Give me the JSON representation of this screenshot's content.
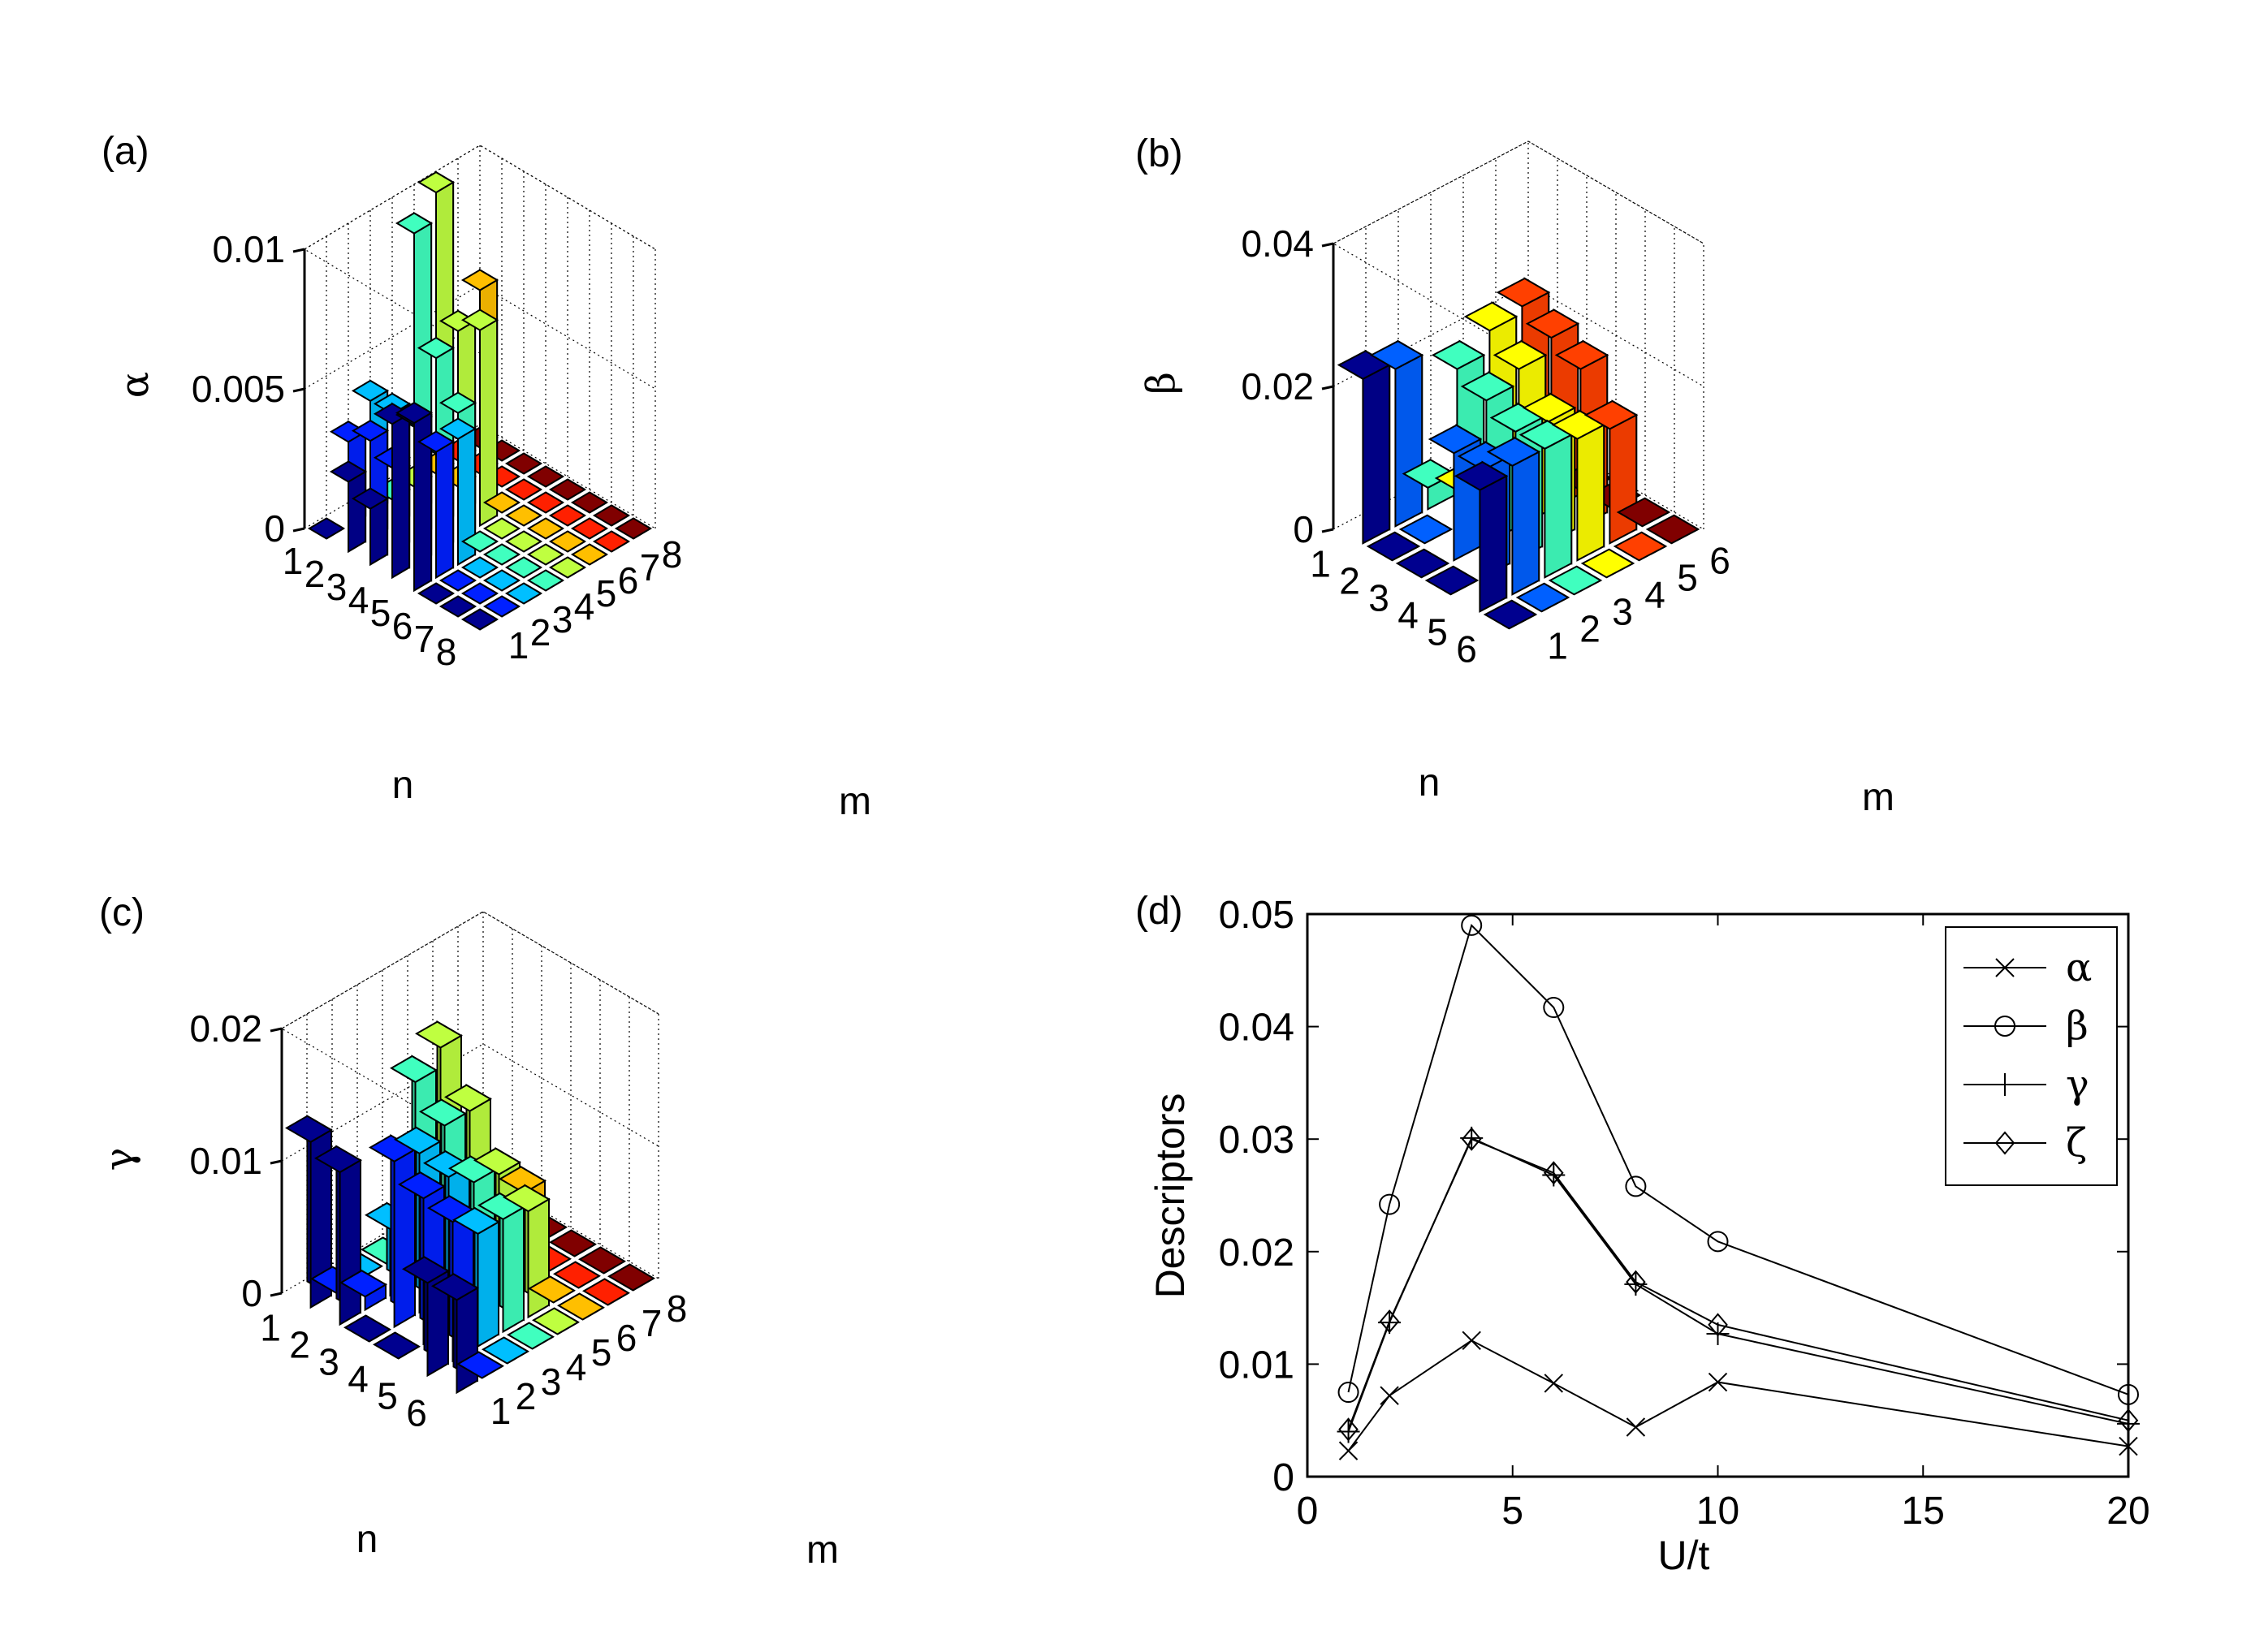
{
  "chart_data": [
    {
      "type": "bar3d",
      "panel_label": "(a)",
      "zlabel": "α",
      "xlabel": "n",
      "ylabel": "m",
      "zlim": [
        0,
        0.01
      ],
      "z_ticks": [
        "0",
        "0.005",
        "0.01"
      ],
      "n_ticks": [
        "1",
        "2",
        "3",
        "4",
        "5",
        "6",
        "7",
        "8"
      ],
      "m_ticks": [
        "1",
        "2",
        "3",
        "4",
        "5",
        "6",
        "7",
        "8"
      ],
      "colormap": [
        "#00008F",
        "#0020FF",
        "#00BFFF",
        "#40FFBF",
        "#BFFF40",
        "#FFBF00",
        "#FF2000",
        "#800000"
      ],
      "values": [
        [
          0.0,
          0.003,
          0.004,
          0.0,
          0.0,
          0.0,
          0.0,
          0.0
        ],
        [
          0.0025,
          0.0035,
          0.004,
          0.01,
          0.011,
          0.0,
          0.0,
          0.0
        ],
        [
          0.002,
          0.003,
          0.004,
          0.006,
          0.0065,
          0.0075,
          0.0,
          0.0
        ],
        [
          0.0055,
          0.005,
          0.0035,
          0.0045,
          0.007,
          0.0,
          0.0,
          0.0
        ],
        [
          0.006,
          0.0045,
          0.0045,
          0.0,
          0.0,
          0.0,
          0.0,
          0.0
        ],
        [
          0.0,
          0.0,
          0.0,
          0.0,
          0.0,
          0.0,
          0.0,
          0.0
        ],
        [
          0.0,
          0.0,
          0.0,
          0.0,
          0.0,
          0.0,
          0.0,
          0.0
        ],
        [
          0.0,
          0.0,
          0.0,
          0.0,
          0.0,
          0.0,
          0.0,
          0.0
        ]
      ]
    },
    {
      "type": "bar3d",
      "panel_label": "(b)",
      "zlabel": "β",
      "xlabel": "n",
      "ylabel": "m",
      "zlim": [
        0,
        0.04
      ],
      "z_ticks": [
        "0",
        "0.02",
        "0.04"
      ],
      "n_ticks": [
        "1",
        "2",
        "3",
        "4",
        "5",
        "6"
      ],
      "m_ticks": [
        "1",
        "2",
        "3",
        "4",
        "5",
        "6"
      ],
      "colormap": [
        "#00008F",
        "#0060FF",
        "#40FFBF",
        "#FFFF00",
        "#FF4000",
        "#800000"
      ],
      "values": [
        [
          0.023,
          0.022,
          0.003,
          0.0,
          0.0,
          0.0
        ],
        [
          0.0,
          0.0,
          0.022,
          0.025,
          0.026,
          0.0
        ],
        [
          0.0,
          0.015,
          0.02,
          0.022,
          0.024,
          0.0
        ],
        [
          0.0,
          0.015,
          0.018,
          0.017,
          0.022,
          0.0
        ],
        [
          0.017,
          0.018,
          0.018,
          0.017,
          0.016,
          0.0
        ],
        [
          0.0,
          0.0,
          0.0,
          0.0,
          0.0,
          0.0
        ]
      ]
    },
    {
      "type": "bar3d",
      "panel_label": "(c)",
      "zlabel": "γ",
      "xlabel": "n",
      "ylabel": "m",
      "zlim": [
        0,
        0.02
      ],
      "z_ticks": [
        "0",
        "0.01",
        "0.02"
      ],
      "n_ticks": [
        "1",
        "2",
        "3",
        "4",
        "5",
        "6"
      ],
      "m_ticks": [
        "1",
        "2",
        "3",
        "4",
        "5",
        "6",
        "7",
        "8"
      ],
      "colormap": [
        "#00008F",
        "#0020FF",
        "#00BFFF",
        "#40FFBF",
        "#BFFF40",
        "#FFBF00",
        "#FF2000",
        "#800000"
      ],
      "values": [
        [
          0.0125,
          0.0,
          0.0,
          0.0,
          0.0,
          0.0,
          0.0,
          0.0
        ],
        [
          0.0115,
          0.001,
          0.005,
          0.015,
          0.0165,
          0.0,
          0.0,
          0.0
        ],
        [
          0.0,
          0.0125,
          0.012,
          0.013,
          0.013,
          0.0,
          0.0,
          0.0
        ],
        [
          0.0,
          0.011,
          0.0115,
          0.01,
          0.0095,
          0.007,
          0.0,
          0.0
        ],
        [
          0.007,
          0.0105,
          0.0085,
          0.0085,
          0.008,
          0.0,
          0.0,
          0.0
        ],
        [
          0.007,
          0.0,
          0.0,
          0.0,
          0.0,
          0.0,
          0.0,
          0.0
        ]
      ]
    },
    {
      "type": "line",
      "panel_label": "(d)",
      "xlabel": "U/t",
      "ylabel": "Descriptors",
      "xlim": [
        0,
        20
      ],
      "ylim": [
        0,
        0.05
      ],
      "x_ticks": [
        "0",
        "5",
        "10",
        "15",
        "20"
      ],
      "x_tick_values": [
        0,
        5,
        10,
        15,
        20
      ],
      "y_ticks": [
        "0",
        "0.01",
        "0.02",
        "0.03",
        "0.04",
        "0.05"
      ],
      "y_tick_values": [
        0,
        0.01,
        0.02,
        0.03,
        0.04,
        0.05
      ],
      "x": [
        1,
        2,
        4,
        6,
        8,
        10,
        20
      ],
      "series": [
        {
          "name": "α",
          "marker": "x",
          "values": [
            0.0023,
            0.0072,
            0.0121,
            0.0083,
            0.0044,
            0.0084,
            0.0027
          ]
        },
        {
          "name": "β",
          "marker": "circle",
          "values": [
            0.0075,
            0.0242,
            0.049,
            0.0417,
            0.0258,
            0.0209,
            0.0073
          ]
        },
        {
          "name": "γ",
          "marker": "plus",
          "values": [
            0.004,
            0.0137,
            0.0301,
            0.0268,
            0.0171,
            0.0127,
            0.0047
          ]
        },
        {
          "name": "ζ",
          "marker": "diamond",
          "values": [
            0.0042,
            0.0138,
            0.03,
            0.027,
            0.0173,
            0.0135,
            0.005
          ]
        }
      ],
      "legend_position": "top-right"
    }
  ]
}
